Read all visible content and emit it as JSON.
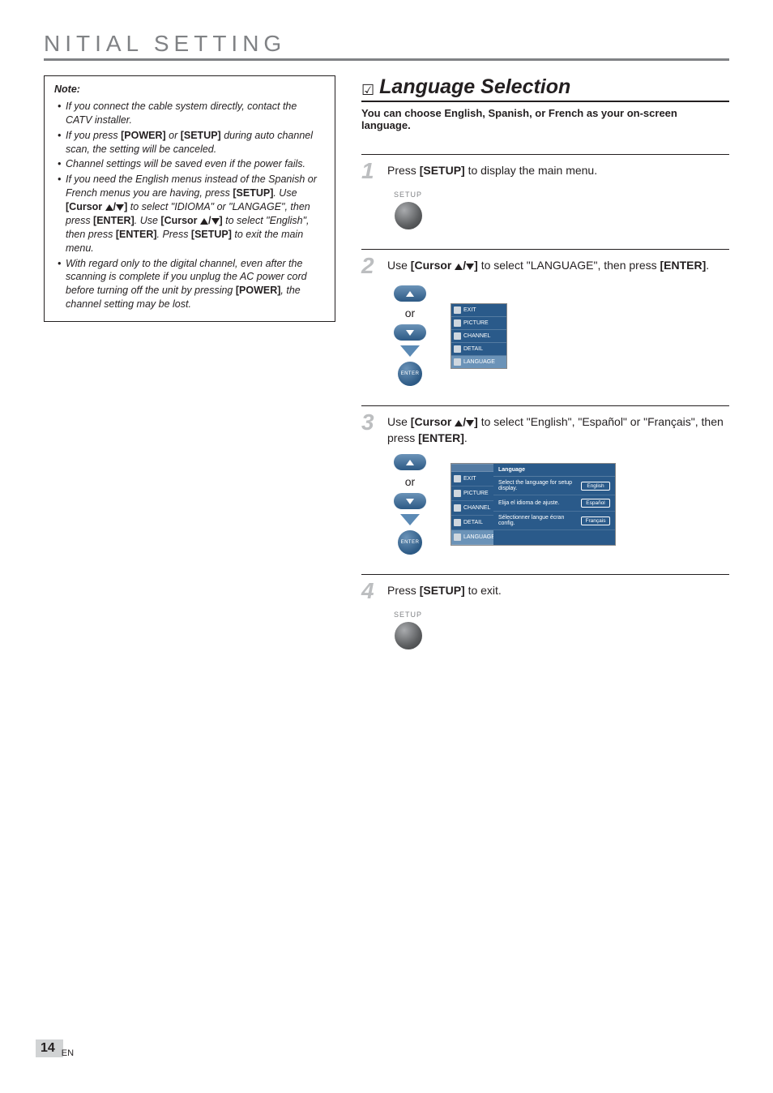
{
  "section_title": "NITIAL   SETTING",
  "note": {
    "heading": "Note:",
    "items": [
      {
        "html": "If you connect the cable system directly, contact the CATV installer."
      },
      {
        "html": "If you press <b>[POWER]</b> or <b>[SETUP]</b> during auto channel scan, the setting will be canceled."
      },
      {
        "html": "Channel settings will be saved even if the power fails."
      },
      {
        "html": "If you need the English menus instead of the Spanish or French menus you are having, press <b>[SETUP]</b>. Use <b>[Cursor ▲/▼]</b> to select \"IDIOMA\" or \"LANGAGE\", then press <b>[ENTER]</b>. Use <b>[Cursor ▲/▼]</b> to select \"English\", then press <b>[ENTER]</b>. Press <b>[SETUP]</b> to exit the main menu."
      },
      {
        "html": "With regard only to the digital channel, even after the scanning is complete if you unplug the AC power cord before turning off the unit by pressing <b>[POWER]</b>, the channel setting may be lost."
      }
    ]
  },
  "feature": {
    "title": "Language Selection",
    "subtitle": "You can choose English, Spanish, or French as your on-screen language."
  },
  "steps": {
    "s1": {
      "num": "1",
      "html": "Press <b>[SETUP]</b> to display the main menu."
    },
    "s2": {
      "num": "2",
      "html": "Use <b>[Cursor ▲/▼]</b> to select \"LANGUAGE\", then press <b>[ENTER]</b>."
    },
    "s3": {
      "num": "3",
      "html": "Use <b>[Cursor ▲/▼]</b> to select \"English\", \"Español\" or \"Français\", then press <b>[ENTER]</b>."
    },
    "s4": {
      "num": "4",
      "html": "Press <b>[SETUP]</b> to exit."
    }
  },
  "remote": {
    "setup_label": "SETUP",
    "or": "or",
    "enter": "ENTER"
  },
  "osd_small": {
    "items": [
      "EXIT",
      "PICTURE",
      "CHANNEL",
      "DETAIL",
      "LANGUAGE"
    ]
  },
  "osd_large": {
    "side_blank": "",
    "side_items": [
      "EXIT",
      "PICTURE",
      "CHANNEL",
      "DETAIL",
      "LANGUAGE"
    ],
    "header": "Language",
    "rows": [
      {
        "label": "Select the language for setup display.",
        "opt": "English"
      },
      {
        "label": "Elija el idioma de ajuste.",
        "opt": "Español"
      },
      {
        "label": "Sélectionner langue écran config.",
        "opt": "Français"
      }
    ]
  },
  "footer": {
    "page": "14",
    "lang": "EN"
  },
  "colors": {
    "title_gray": "#808285",
    "step_num_gray": "#bcbec0",
    "osd_blue_dark": "#2a5a8a",
    "osd_blue_light": "#6b93b8",
    "footer_bg": "#d1d3d4"
  }
}
